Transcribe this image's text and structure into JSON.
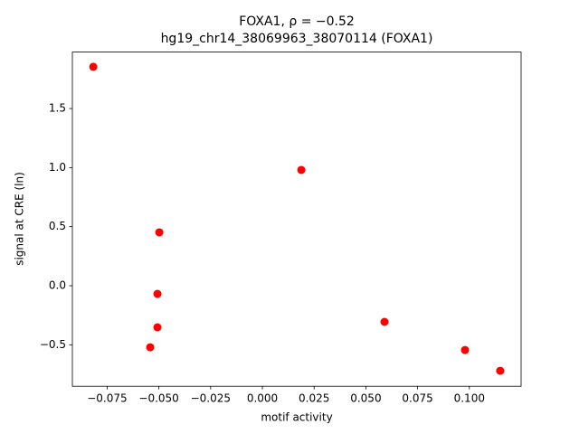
{
  "chart_data": {
    "type": "scatter",
    "title": "FOXA1, ρ = −0.52",
    "subtitle": "hg19_chr14_38069963_38070114 (FOXA1)",
    "x_label": "motif activity",
    "y_label": "signal at CRE (ln)",
    "color": "#ff0000",
    "x": [
      -0.0817,
      0.0188,
      -0.0498,
      -0.0507,
      -0.0507,
      -0.0542,
      0.059,
      0.0979,
      0.1149
    ],
    "values": [
      1.853,
      0.98,
      0.452,
      -0.069,
      -0.352,
      -0.521,
      -0.306,
      -0.544,
      -0.72
    ],
    "xlim": [
      -0.0918,
      0.125
    ],
    "ylim": [
      -0.851,
      1.978
    ],
    "xticks": [
      {
        "value": -0.075,
        "label": "−0.075"
      },
      {
        "value": -0.05,
        "label": "−0.050"
      },
      {
        "value": -0.025,
        "label": "−0.025"
      },
      {
        "value": 0,
        "label": "0.000"
      },
      {
        "value": 0.025,
        "label": "0.025"
      },
      {
        "value": 0.05,
        "label": "0.050"
      },
      {
        "value": 0.075,
        "label": "0.075"
      },
      {
        "value": 0.1,
        "label": "0.100"
      }
    ],
    "yticks": [
      {
        "value": -0.5,
        "label": "−0.5"
      },
      {
        "value": 0,
        "label": "0.0"
      },
      0.5,
      {
        "value": 1,
        "label": "1.0"
      },
      1.5
    ],
    "grid": false
  }
}
